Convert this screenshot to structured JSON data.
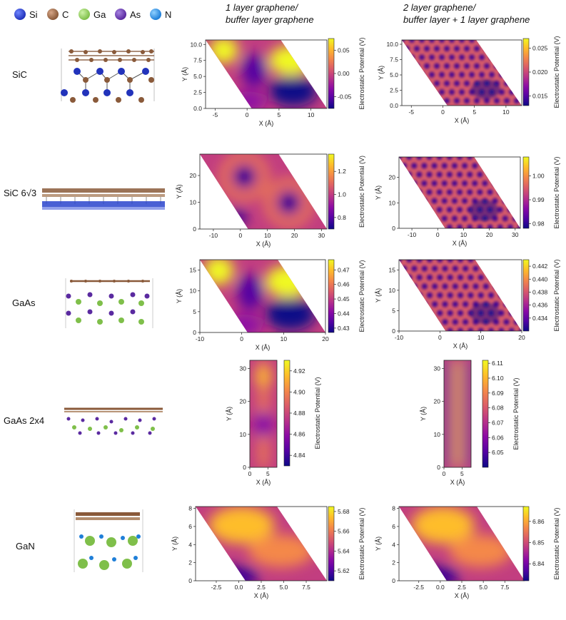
{
  "legend": [
    {
      "label": "Si",
      "color": "#2233bb",
      "hi": "#6f86ff"
    },
    {
      "label": "C",
      "color": "#8a5a3a",
      "hi": "#d6a586"
    },
    {
      "label": "Ga",
      "color": "#7fbf4a",
      "hi": "#cdf2a6"
    },
    {
      "label": "As",
      "color": "#5a2aa0",
      "hi": "#a683e0"
    },
    {
      "label": "N",
      "color": "#1f7fd8",
      "hi": "#8fd0ff"
    }
  ],
  "columns": [
    {
      "line1": "1 layer graphene/",
      "line2": "buffer layer graphene"
    },
    {
      "line1": "2 layer graphene/",
      "line2": "buffer layer + 1 layer graphene"
    }
  ],
  "rows": [
    {
      "label": "SiC"
    },
    {
      "label": "SiC 6√3"
    },
    {
      "label": "GaAs"
    },
    {
      "label": "GaAs 2x4"
    },
    {
      "label": "GaN"
    }
  ],
  "chart_data": [
    {
      "type": "heatmap",
      "row": "SiC",
      "panel": "1 layer graphene/buffer layer graphene",
      "xlabel": "X (Å)",
      "ylabel": "Y (Å)",
      "xticks": [
        "-5",
        "0",
        "5",
        "10"
      ],
      "yticks": [
        "0.0",
        "2.5",
        "5.0",
        "7.5",
        "10.0"
      ],
      "xlim": [
        -6.5,
        12.5
      ],
      "ylim": [
        0,
        10.7
      ],
      "colorbar_label": "Electrostatic Potential (V)",
      "colorbar_ticks": [
        "0.05",
        "0.00",
        "-0.05"
      ],
      "cbar_range": [
        -0.075,
        0.075
      ],
      "pattern": "blobs"
    },
    {
      "type": "heatmap",
      "row": "SiC",
      "panel": "2 layer graphene/buffer layer + 1 layer graphene",
      "xlabel": "X (Å)",
      "ylabel": "Y (Å)",
      "xticks": [
        "-5",
        "0",
        "5",
        "10"
      ],
      "yticks": [
        "0.0",
        "2.5",
        "5.0",
        "7.5",
        "10.0"
      ],
      "xlim": [
        -6.5,
        12.5
      ],
      "ylim": [
        0,
        10.7
      ],
      "colorbar_label": "Electrostatic Potential (V)",
      "colorbar_ticks": [
        "0.025",
        "0.020",
        "0.015"
      ],
      "cbar_range": [
        0.013,
        0.027
      ],
      "pattern": "lattice"
    },
    {
      "type": "heatmap",
      "row": "SiC 6√3",
      "panel": "1 layer graphene/buffer layer graphene",
      "xlabel": "X (Å)",
      "ylabel": "Y (Å)",
      "xticks": [
        "-10",
        "0",
        "10",
        "20",
        "30"
      ],
      "yticks": [
        "0",
        "10",
        "20"
      ],
      "xlim": [
        -15,
        32
      ],
      "ylim": [
        0,
        28
      ],
      "colorbar_label": "Electrostatic Potential (V)",
      "colorbar_ticks": [
        "1.2",
        "1.0",
        "0.8"
      ],
      "cbar_range": [
        0.7,
        1.35
      ],
      "pattern": "rings"
    },
    {
      "type": "heatmap",
      "row": "SiC 6√3",
      "panel": "2 layer graphene/buffer layer + 1 layer graphene",
      "xlabel": "X (Å)",
      "ylabel": "Y (Å)",
      "xticks": [
        "-10",
        "0",
        "10",
        "20",
        "30"
      ],
      "yticks": [
        "0",
        "10",
        "20"
      ],
      "xlim": [
        -15,
        32
      ],
      "ylim": [
        0,
        28
      ],
      "colorbar_label": "Electrostatic Potential (V)",
      "colorbar_ticks": [
        "1.00",
        "0.99",
        "0.98"
      ],
      "cbar_range": [
        0.978,
        1.008
      ],
      "pattern": "lattice"
    },
    {
      "type": "heatmap",
      "row": "GaAs",
      "panel": "1 layer graphene/buffer layer graphene",
      "xlabel": "X (Å)",
      "ylabel": "Y (Å)",
      "xticks": [
        "-10",
        "0",
        "10",
        "20"
      ],
      "yticks": [
        "0",
        "5",
        "10",
        "15"
      ],
      "xlim": [
        -10,
        20
      ],
      "ylim": [
        0,
        17.5
      ],
      "colorbar_label": "Electrostatic Potential (V)",
      "colorbar_ticks": [
        "0.47",
        "0.46",
        "0.45",
        "0.44",
        "0.43"
      ],
      "cbar_range": [
        0.427,
        0.477
      ],
      "pattern": "blobs"
    },
    {
      "type": "heatmap",
      "row": "GaAs",
      "panel": "2 layer graphene/buffer layer + 1 layer graphene",
      "xlabel": "X (Å)",
      "ylabel": "Y (Å)",
      "xticks": [
        "-10",
        "0",
        "10",
        "20"
      ],
      "yticks": [
        "0",
        "5",
        "10",
        "15"
      ],
      "xlim": [
        -10,
        20
      ],
      "ylim": [
        0,
        17.5
      ],
      "colorbar_label": "Electrostatic Potential (V)",
      "colorbar_ticks": [
        "0.442",
        "0.440",
        "0.438",
        "0.436",
        "0.434"
      ],
      "cbar_range": [
        0.432,
        0.443
      ],
      "pattern": "lattice"
    },
    {
      "type": "heatmap",
      "row": "GaAs 2x4",
      "panel": "1 layer graphene/buffer layer graphene",
      "xlabel": "X (Å)",
      "ylabel": "Y (Å)",
      "xticks": [
        "0",
        "5"
      ],
      "yticks": [
        "0",
        "10",
        "20",
        "30"
      ],
      "xlim": [
        0,
        7.5
      ],
      "ylim": [
        0,
        32.5
      ],
      "colorbar_label": "Electrostatic Potential (V)",
      "colorbar_ticks": [
        "4.92",
        "4.90",
        "4.88",
        "4.86",
        "4.84"
      ],
      "cbar_range": [
        4.83,
        4.93
      ],
      "pattern": "stripe"
    },
    {
      "type": "heatmap",
      "row": "GaAs 2x4",
      "panel": "2 layer graphene/buffer layer + 1 layer graphene",
      "xlabel": "X (Å)",
      "ylabel": "Y (Å)",
      "xticks": [
        "0",
        "5"
      ],
      "yticks": [
        "0",
        "10",
        "20",
        "30"
      ],
      "xlim": [
        0,
        7.5
      ],
      "ylim": [
        0,
        32.5
      ],
      "colorbar_label": "Electrostatic Potential (V)",
      "colorbar_ticks": [
        "6.11",
        "6.10",
        "6.09",
        "6.08",
        "6.07",
        "6.06",
        "6.05"
      ],
      "cbar_range": [
        6.04,
        6.112
      ],
      "pattern": "stripe2"
    },
    {
      "type": "heatmap",
      "row": "GaN",
      "panel": "1 layer graphene/buffer layer graphene",
      "xlabel": "X (Å)",
      "ylabel": "Y (Å)",
      "xticks": [
        "-2.5",
        "0.0",
        "2.5",
        "5.0",
        "7.5"
      ],
      "yticks": [
        "0",
        "2",
        "4",
        "6",
        "8"
      ],
      "xlim": [
        -4.8,
        9.8
      ],
      "ylim": [
        0,
        8.2
      ],
      "colorbar_label": "Electrostatic Potential (V)",
      "colorbar_ticks": [
        "5.68",
        "5.66",
        "5.64",
        "5.62"
      ],
      "cbar_range": [
        5.61,
        5.685
      ],
      "pattern": "smooth"
    },
    {
      "type": "heatmap",
      "row": "GaN",
      "panel": "2 layer graphene/buffer layer + 1 layer graphene",
      "xlabel": "X (Å)",
      "ylabel": "Y (Å)",
      "xticks": [
        "-2.5",
        "0.0",
        "2.5",
        "5.0",
        "7.5"
      ],
      "yticks": [
        "0",
        "2",
        "4",
        "6",
        "8"
      ],
      "xlim": [
        -4.8,
        9.8
      ],
      "ylim": [
        0,
        8.2
      ],
      "colorbar_label": "Electrostatic Potential (V)",
      "colorbar_ticks": [
        "6.86",
        "6.85",
        "6.84"
      ],
      "cbar_range": [
        6.832,
        6.867
      ],
      "pattern": "smooth"
    }
  ]
}
